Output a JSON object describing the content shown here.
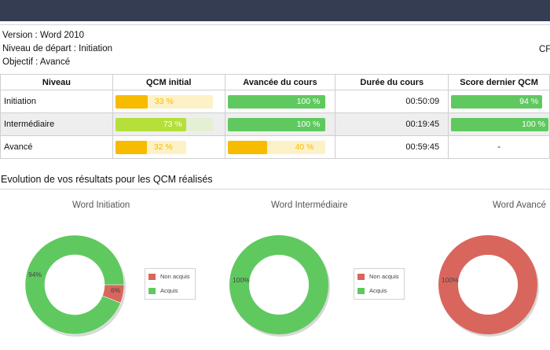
{
  "info": {
    "version": "Version : Word 2010",
    "niveau_depart": "Niveau de départ : Initiation",
    "objectif": "Objectif : Avancé",
    "right_text": "CFA"
  },
  "table": {
    "headers": [
      "Niveau",
      "QCM initial",
      "Avancée du cours",
      "Durée du cours",
      "Score dernier QCM"
    ],
    "rows": [
      {
        "niveau": "Initiation",
        "qcm_initial": {
          "label": "33 %",
          "value": 33
        },
        "avancee": {
          "label": "100 %",
          "value": 100
        },
        "duree": "00:50:09",
        "score": {
          "label": "94 %",
          "value": 94
        }
      },
      {
        "niveau": "Intermédiaire",
        "qcm_initial": {
          "label": "73 %",
          "value": 73
        },
        "avancee": {
          "label": "100 %",
          "value": 100
        },
        "duree": "00:19:45",
        "score": {
          "label": "100 %",
          "value": 100
        }
      },
      {
        "niveau": "Avancé",
        "qcm_initial": {
          "label": "32 %",
          "value": 32
        },
        "avancee": {
          "label": "40 %",
          "value": 40
        },
        "duree": "00:59:45",
        "score": {
          "label": "-",
          "value": null
        }
      }
    ]
  },
  "colors": {
    "green": "#5fc95f",
    "lime": "#b5df3a",
    "orange": "#f7bb00",
    "orange_track": "#fdf1c7",
    "lime_track": "#e5efd3",
    "red": "#d9665d",
    "topbar": "#343d52"
  },
  "section_title": "Evolution de vos résultats pour les QCM réalisés",
  "chart_data": [
    {
      "type": "pie",
      "title": "Word Initiation",
      "categories": [
        "Non acquis",
        "Acquis"
      ],
      "values": [
        6,
        94
      ],
      "labels": [
        "6%",
        "94%"
      ]
    },
    {
      "type": "pie",
      "title": "Word Intermédiaire",
      "categories": [
        "Non acquis",
        "Acquis"
      ],
      "values": [
        0,
        100
      ],
      "labels": [
        "",
        "100%"
      ]
    },
    {
      "type": "pie",
      "title": "Word Avancé",
      "categories": [
        "Non acquis",
        "Acquis"
      ],
      "values": [
        100,
        0
      ],
      "labels": [
        "100%",
        ""
      ]
    }
  ],
  "legend": {
    "non_acquis": "Non acquis",
    "acquis": "Acquis"
  }
}
